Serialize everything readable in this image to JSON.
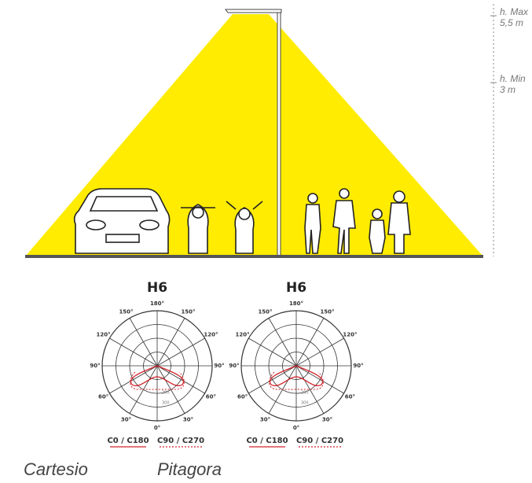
{
  "scene": {
    "height_labels": [
      {
        "label": "h. Max",
        "value": "5,5 m"
      },
      {
        "label": "h. Min",
        "value": "3 m"
      }
    ]
  },
  "diagrams": [
    {
      "title": "H6",
      "angle_labels": [
        "180°",
        "150°",
        "150°",
        "120°",
        "120°",
        "90°",
        "90°",
        "60°",
        "60°",
        "30°",
        "30°",
        "0°"
      ],
      "radial_labels": [
        "200",
        "300"
      ],
      "legend": [
        "C0 / C180",
        "C90 / C270"
      ],
      "name": "Cartesio"
    },
    {
      "title": "H6",
      "angle_labels": [
        "180°",
        "150°",
        "150°",
        "120°",
        "120°",
        "90°",
        "90°",
        "60°",
        "60°",
        "30°",
        "30°",
        "0°"
      ],
      "radial_labels": [
        "200",
        "300"
      ],
      "legend": [
        "C0 / C180",
        "C90 / C270"
      ],
      "name": "Pitagora"
    }
  ]
}
